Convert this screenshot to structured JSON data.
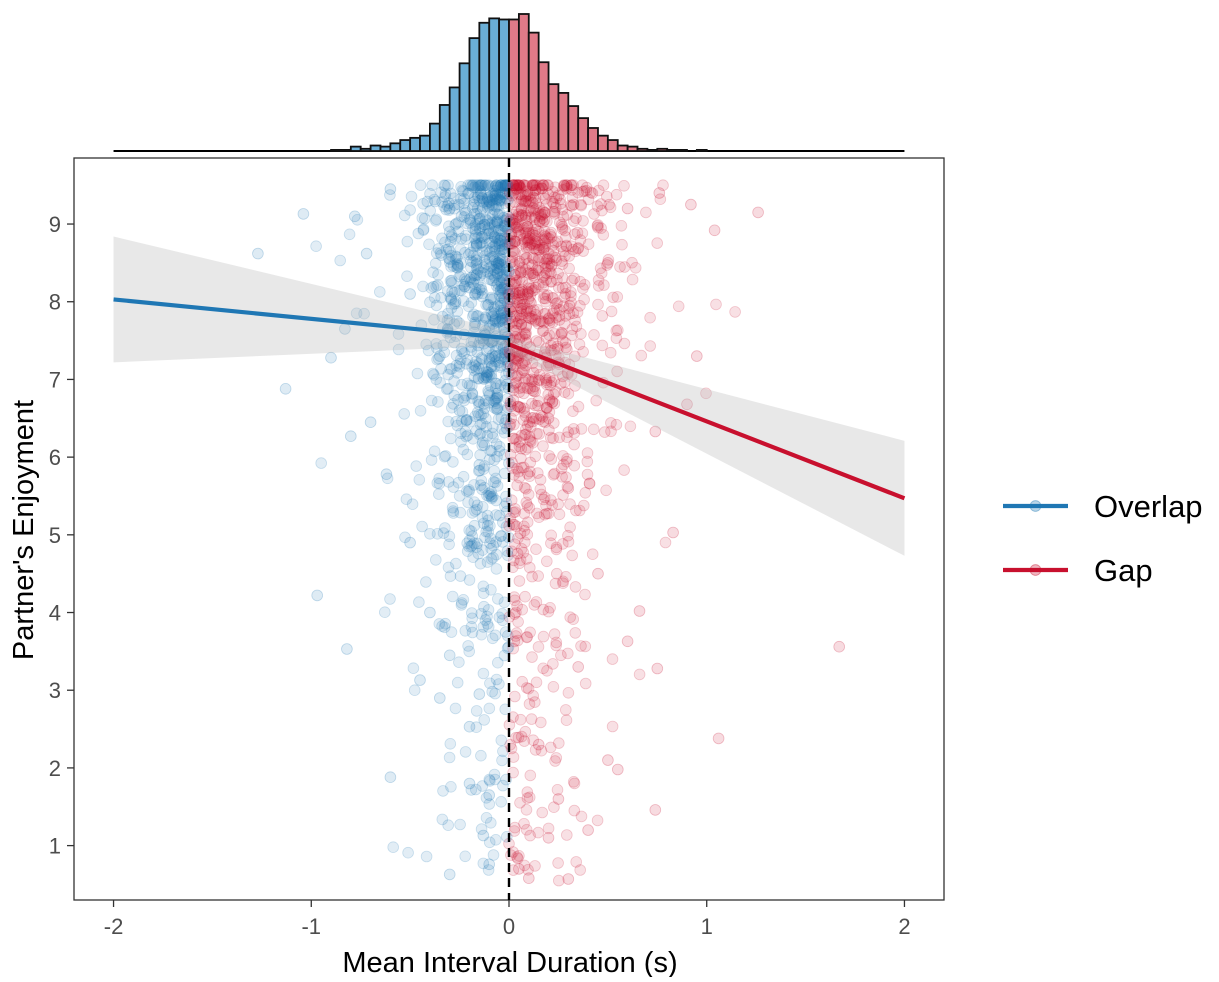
{
  "chart_data": {
    "type": "scatter",
    "xlabel": "Mean Interval Duration (s)",
    "ylabel": "Partner's Enjoyment",
    "xlim": [
      -2.2,
      2.2
    ],
    "ylim": [
      0.3,
      9.85
    ],
    "x_ticks": [
      -2,
      -1,
      0,
      1,
      2
    ],
    "y_ticks": [
      1,
      2,
      3,
      4,
      5,
      6,
      7,
      8,
      9
    ],
    "x_tick_labels": [
      "-2",
      "-1",
      "0",
      "1",
      "2"
    ],
    "y_tick_labels": [
      "1",
      "2",
      "3",
      "4",
      "5",
      "6",
      "7",
      "8",
      "9"
    ],
    "grid": false,
    "legend_position": "right",
    "reference_line": {
      "x": 0,
      "style": "dashed",
      "color": "#000000"
    },
    "series": [
      {
        "name": "Overlap",
        "color": "#1f77b4",
        "fit_line": {
          "x": [
            -2,
            0
          ],
          "y": [
            8.03,
            7.53
          ]
        },
        "ci_band": {
          "x": [
            -2,
            0
          ],
          "lower": [
            7.22,
            7.44
          ],
          "upper": [
            8.84,
            7.62
          ]
        },
        "points_sample": [
          [
            -1.27,
            8.62
          ],
          [
            -1.13,
            6.88
          ],
          [
            -0.97,
            4.22
          ],
          [
            -0.82,
            3.53
          ],
          [
            -0.6,
            1.88
          ],
          [
            -0.3,
            0.63
          ],
          [
            -0.1,
            0.76
          ],
          [
            -0.2,
            1.8
          ],
          [
            -0.1,
            1.65
          ],
          [
            -0.13,
            1.13
          ],
          [
            -0.83,
            7.65
          ],
          [
            -0.9,
            7.28
          ],
          [
            -0.8,
            6.27
          ],
          [
            -0.7,
            6.45
          ],
          [
            -0.62,
            5.78
          ],
          [
            -0.5,
            4.9
          ],
          [
            -0.4,
            4.0
          ],
          [
            -0.3,
            3.45
          ],
          [
            -0.45,
            3.13
          ],
          [
            -0.2,
            2.53
          ],
          [
            -0.15,
            2.95
          ],
          [
            -0.35,
            2.9
          ],
          [
            -0.6,
            9.45
          ],
          [
            -0.78,
            9.1
          ],
          [
            -1.04,
            9.13
          ],
          [
            -0.72,
            8.62
          ],
          [
            -0.5,
            8.1
          ],
          [
            -0.35,
            7.3
          ],
          [
            -0.25,
            6.6
          ],
          [
            -0.15,
            5.9
          ]
        ]
      },
      {
        "name": "Gap",
        "color": "#c8102e",
        "fit_line": {
          "x": [
            0,
            2
          ],
          "y": [
            7.45,
            5.47
          ]
        },
        "ci_band": {
          "x": [
            0,
            2
          ],
          "lower": [
            7.36,
            4.73
          ],
          "upper": [
            7.54,
            6.21
          ]
        },
        "points_sample": [
          [
            1.67,
            3.56
          ],
          [
            1.06,
            2.38
          ],
          [
            0.74,
            1.46
          ],
          [
            0.55,
            1.98
          ],
          [
            0.5,
            2.1
          ],
          [
            1.26,
            9.15
          ],
          [
            1.04,
            8.92
          ],
          [
            0.92,
            9.25
          ],
          [
            0.76,
            9.4
          ],
          [
            0.74,
            6.33
          ],
          [
            0.95,
            7.3
          ],
          [
            0.9,
            6.68
          ],
          [
            0.83,
            5.03
          ],
          [
            0.75,
            3.28
          ],
          [
            0.66,
            4.02
          ],
          [
            0.6,
            3.63
          ],
          [
            0.35,
            3.3
          ],
          [
            0.4,
            1.2
          ],
          [
            0.3,
            0.57
          ],
          [
            0.1,
            0.58
          ],
          [
            0.05,
            0.7
          ],
          [
            0.2,
            1.1
          ],
          [
            0.25,
            1.6
          ],
          [
            0.15,
            2.3
          ],
          [
            0.45,
            4.5
          ],
          [
            0.3,
            5.6
          ],
          [
            0.2,
            6.5
          ],
          [
            0.1,
            7.8
          ],
          [
            0.5,
            8.5
          ],
          [
            0.6,
            9.2
          ]
        ]
      }
    ],
    "marginal_histogram": {
      "position": "top",
      "bin_width": 0.05,
      "bins_left_edges": [
        -0.9,
        -0.85,
        -0.8,
        -0.75,
        -0.7,
        -0.65,
        -0.6,
        -0.55,
        -0.5,
        -0.45,
        -0.4,
        -0.35,
        -0.3,
        -0.25,
        -0.2,
        -0.15,
        -0.1,
        -0.05,
        0.0,
        0.05,
        0.1,
        0.15,
        0.2,
        0.25,
        0.3,
        0.35,
        0.4,
        0.45,
        0.5,
        0.55,
        0.6,
        0.65,
        0.7,
        0.75,
        0.8,
        0.85,
        0.9,
        0.95,
        1.0
      ],
      "counts": [
        1,
        1,
        4,
        2,
        5,
        4,
        7,
        10,
        12,
        14,
        25,
        42,
        58,
        80,
        103,
        117,
        121,
        120,
        120,
        125,
        108,
        81,
        61,
        53,
        41,
        30,
        21,
        14,
        10,
        5,
        4,
        2,
        1,
        2,
        1,
        1,
        0,
        1,
        0
      ],
      "overlap_color": "#6aaed6",
      "gap_color": "#e07a88"
    }
  }
}
